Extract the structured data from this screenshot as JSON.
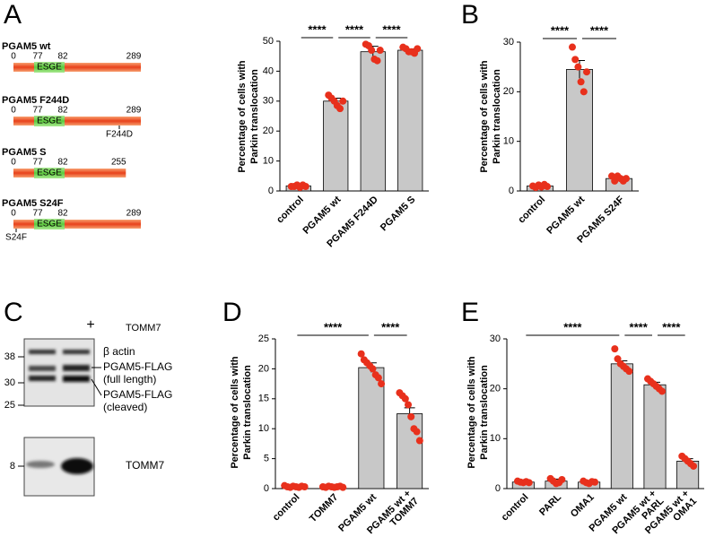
{
  "panels": [
    "A",
    "B",
    "C",
    "D",
    "E"
  ],
  "constructs": [
    {
      "name": "PGAM5 wt",
      "ticks": [
        0,
        77,
        82,
        289
      ],
      "motif": "ESGE"
    },
    {
      "name": "PGAM5 F244D",
      "ticks": [
        0,
        77,
        82,
        289
      ],
      "motif": "ESGE",
      "mutation": "F244D"
    },
    {
      "name": "PGAM5 S",
      "ticks": [
        0,
        77,
        82,
        255
      ],
      "motif": "ESGE"
    },
    {
      "name": "PGAM5 S24F",
      "ticks": [
        0,
        77,
        82,
        289
      ],
      "motif": "ESGE",
      "mutation": "S24F"
    }
  ],
  "blot": {
    "lane_mark": "+",
    "treatment": "TOMM7",
    "markers": [
      38,
      30,
      25,
      8
    ],
    "bands": [
      [
        "β actin"
      ],
      [
        "PGAM5-FLAG",
        "(full length)"
      ],
      [
        "PGAM5-FLAG",
        "(cleaved)"
      ]
    ],
    "lower_label": "TOMM7"
  },
  "chart_data": [
    {
      "type": "bar",
      "ylabel": [
        "Percentage of cells with",
        "Parkin translocation"
      ],
      "categories": [
        "control",
        "PGAM5 wt",
        "PGAM5 F244D",
        "PGAM5 S"
      ],
      "values": [
        1.7,
        30,
        46.5,
        47
      ],
      "errors": [
        0.3,
        1,
        1.8,
        0.4
      ],
      "points": [
        [
          1.5,
          1.5,
          2,
          1.2,
          2,
          1.5
        ],
        [
          32,
          31,
          30,
          28.5,
          27.5,
          30
        ],
        [
          49,
          48.5,
          47,
          44,
          43.5,
          47
        ],
        [
          48,
          47.5,
          46.5,
          46.5,
          46,
          47.5
        ]
      ],
      "color": "#c8c8c8",
      "point_color": "#e8301c",
      "ylim": [
        0,
        50
      ],
      "yticks": [
        0,
        10,
        20,
        30,
        40,
        50
      ],
      "annotations": [
        {
          "text": "****",
          "span": [
            0,
            1
          ]
        },
        {
          "text": "****",
          "span": [
            1,
            2
          ]
        },
        {
          "text": "****",
          "span": [
            2,
            3
          ]
        }
      ]
    },
    {
      "type": "bar",
      "ylabel": [
        "Percentage of cells with",
        "Parkin translocation"
      ],
      "categories": [
        "control",
        "PGAM5 wt",
        "PGAM5 S24F"
      ],
      "values": [
        1,
        24.5,
        2.5
      ],
      "errors": [
        0.3,
        1.8,
        0.4
      ],
      "points": [
        [
          1,
          0.7,
          1.2,
          0.8,
          1.3,
          0.9
        ],
        [
          29,
          26.5,
          25,
          22,
          20,
          24
        ],
        [
          3,
          2,
          3,
          2.5,
          2,
          2.5
        ]
      ],
      "color": "#c8c8c8",
      "point_color": "#e8301c",
      "ylim": [
        0,
        30
      ],
      "yticks": [
        0,
        10,
        20,
        30
      ],
      "annotations": [
        {
          "text": "****",
          "span": [
            0,
            1
          ]
        },
        {
          "text": "****",
          "span": [
            1,
            2
          ]
        }
      ]
    },
    {
      "type": "bar",
      "ylabel": [
        "Percentage of cells with",
        "Parkin translocation"
      ],
      "categories": [
        "control",
        "TOMM7",
        "PGAM5 wt",
        [
          "PGAM5 wt +",
          "TOMM7"
        ]
      ],
      "values": [
        0.3,
        0.3,
        20.2,
        12.5
      ],
      "errors": [
        0.1,
        0.1,
        0.8,
        1
      ],
      "points": [
        [
          0.5,
          0.3,
          0.2,
          0.4,
          0.3,
          0.2,
          0.4,
          0.3
        ],
        [
          0.3,
          0.2,
          0.4,
          0.3,
          0.2,
          0.3,
          0.4,
          0.2
        ],
        [
          22.5,
          21.5,
          21,
          20.5,
          20,
          19,
          18.5,
          17.5
        ],
        [
          16,
          15.5,
          15,
          14,
          12,
          10,
          9.5,
          8
        ]
      ],
      "color": "#c8c8c8",
      "point_color": "#e8301c",
      "ylim": [
        0,
        25
      ],
      "yticks": [
        0,
        5,
        10,
        15,
        20,
        25
      ],
      "annotations": [
        {
          "text": "****",
          "span": [
            0,
            2
          ]
        },
        {
          "text": "****",
          "span": [
            2,
            3
          ]
        }
      ]
    },
    {
      "type": "bar",
      "ylabel": [
        "Percentage of cells with",
        "Parkin translocation"
      ],
      "categories": [
        "control",
        "PARL",
        "OMA1",
        "PGAM5 wt",
        [
          "PGAM5 wt +",
          "PARL"
        ],
        [
          "PGAM5 wt +",
          "OMA1"
        ]
      ],
      "values": [
        1.3,
        1.5,
        1.3,
        25,
        20.8,
        5.5
      ],
      "errors": [
        0.1,
        0.4,
        0.2,
        0.6,
        0.5,
        0.5
      ],
      "points": [
        [
          1.5,
          1.3,
          1.2,
          1.4,
          1.2
        ],
        [
          2,
          1.5,
          1,
          1.2,
          1.8
        ],
        [
          1.5,
          1.2,
          1,
          1.4,
          1.3
        ],
        [
          28,
          26,
          25,
          24.5,
          24,
          23.5
        ],
        [
          22,
          21.5,
          21,
          20.5,
          20,
          19.5
        ],
        [
          6.5,
          6,
          5.5,
          5,
          4.5
        ]
      ],
      "color": "#c8c8c8",
      "point_color": "#e8301c",
      "ylim": [
        0,
        30
      ],
      "yticks": [
        0,
        10,
        20,
        30
      ],
      "annotations": [
        {
          "text": "****",
          "span": [
            0,
            3
          ]
        },
        {
          "text": "****",
          "span": [
            3,
            4
          ]
        },
        {
          "text": "****",
          "span": [
            4,
            5
          ]
        }
      ]
    }
  ]
}
